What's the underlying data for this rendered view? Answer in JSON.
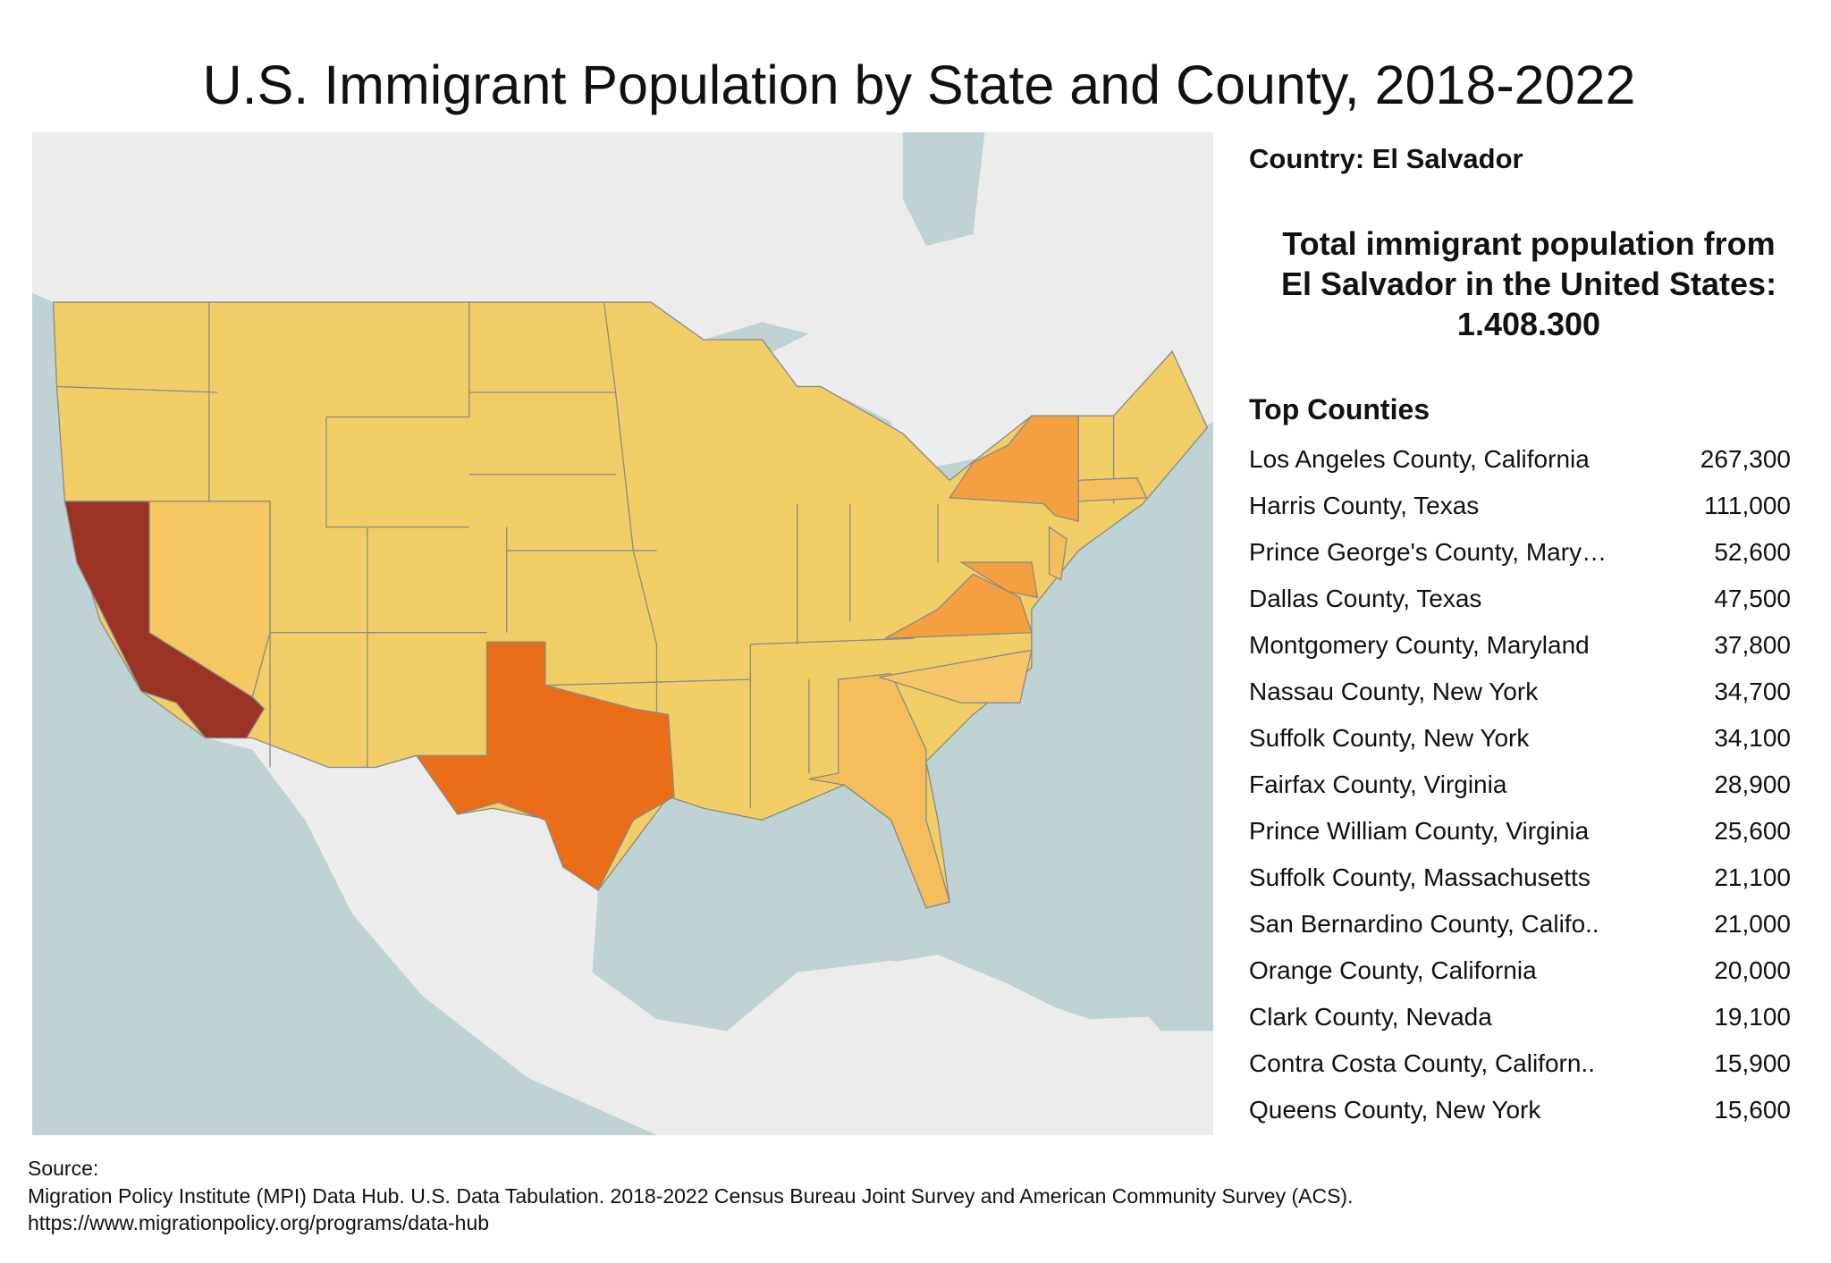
{
  "title": "U.S. Immigrant Population by State and County, 2018-2022",
  "panel": {
    "country_label": "Country: El Salvador",
    "total_line1": "Total immigrant population from",
    "total_line2": "El Salvador in the United States:",
    "total_value": "1.408.300",
    "top_counties_heading": "Top Counties",
    "counties": [
      {
        "name": "Los Angeles County, California",
        "value": "267,300"
      },
      {
        "name": "Harris County, Texas",
        "value": "111,000"
      },
      {
        "name": "Prince George's County, Mary…",
        "value": "52,600"
      },
      {
        "name": "Dallas County, Texas",
        "value": "47,500"
      },
      {
        "name": "Montgomery County, Maryland",
        "value": "37,800"
      },
      {
        "name": "Nassau County, New York",
        "value": "34,700"
      },
      {
        "name": "Suffolk County, New York",
        "value": "34,100"
      },
      {
        "name": "Fairfax County, Virginia",
        "value": "28,900"
      },
      {
        "name": "Prince William County, Virginia",
        "value": "25,600"
      },
      {
        "name": "Suffolk County, Massachusetts",
        "value": "21,100"
      },
      {
        "name": "San Bernardino County, Califo..",
        "value": "21,000"
      },
      {
        "name": "Orange County, California",
        "value": "20,000"
      },
      {
        "name": "Clark County, Nevada",
        "value": "19,100"
      },
      {
        "name": "Contra Costa County, Californ..",
        "value": "15,900"
      },
      {
        "name": "Queens County, New York",
        "value": "15,600"
      }
    ]
  },
  "map": {
    "colors": {
      "ocean": "#bfd3d4",
      "land": "#ececec",
      "low": "#f2cf66",
      "low_mid": "#f5bd5c",
      "mid": "#f4a040",
      "high": "#ea6e1a",
      "highest": "#9a3324"
    },
    "state_levels": {
      "California": "highest",
      "Texas": "high",
      "New York": "mid",
      "Virginia": "mid",
      "Maryland": "mid",
      "New Jersey": "low_mid",
      "Georgia": "low_mid",
      "Florida": "low_mid",
      "North Carolina": "low_mid",
      "Nevada": "low_mid",
      "Massachusetts": "low_mid"
    }
  },
  "source": {
    "label": "Source:",
    "text": "Migration Policy Institute (MPI) Data Hub. U.S. Data Tabulation. 2018-2022 Census Bureau Joint Survey and American Community Survey (ACS).",
    "url": "https://www.migrationpolicy.org/programs/data-hub"
  }
}
